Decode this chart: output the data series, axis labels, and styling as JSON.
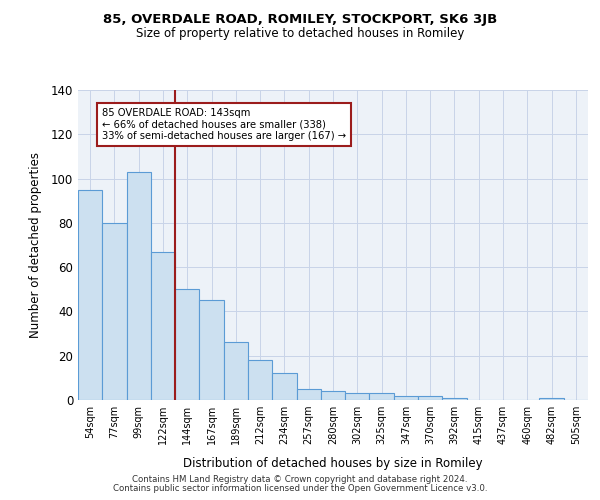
{
  "title1": "85, OVERDALE ROAD, ROMILEY, STOCKPORT, SK6 3JB",
  "title2": "Size of property relative to detached houses in Romiley",
  "xlabel": "Distribution of detached houses by size in Romiley",
  "ylabel": "Number of detached properties",
  "categories": [
    "54sqm",
    "77sqm",
    "99sqm",
    "122sqm",
    "144sqm",
    "167sqm",
    "189sqm",
    "212sqm",
    "234sqm",
    "257sqm",
    "280sqm",
    "302sqm",
    "325sqm",
    "347sqm",
    "370sqm",
    "392sqm",
    "415sqm",
    "437sqm",
    "460sqm",
    "482sqm",
    "505sqm"
  ],
  "bar_values": [
    95,
    80,
    103,
    67,
    50,
    45,
    26,
    18,
    12,
    5,
    4,
    3,
    3,
    2,
    2,
    1,
    0,
    0,
    0,
    1,
    0
  ],
  "bar_color": "#cce0f0",
  "bar_edgecolor": "#5b9bd5",
  "vline_x_index": 4,
  "vline_color": "#9b1c1c",
  "annotation_line1": "85 OVERDALE ROAD: 143sqm",
  "annotation_line2": "← 66% of detached houses are smaller (338)",
  "annotation_line3": "33% of semi-detached houses are larger (167) →",
  "annotation_box_color": "#9b1c1c",
  "ylim": [
    0,
    140
  ],
  "yticks": [
    0,
    20,
    40,
    60,
    80,
    100,
    120,
    140
  ],
  "grid_color": "#c8d4e8",
  "bg_color": "#edf2f8",
  "footer1": "Contains HM Land Registry data © Crown copyright and database right 2024.",
  "footer2": "Contains public sector information licensed under the Open Government Licence v3.0."
}
